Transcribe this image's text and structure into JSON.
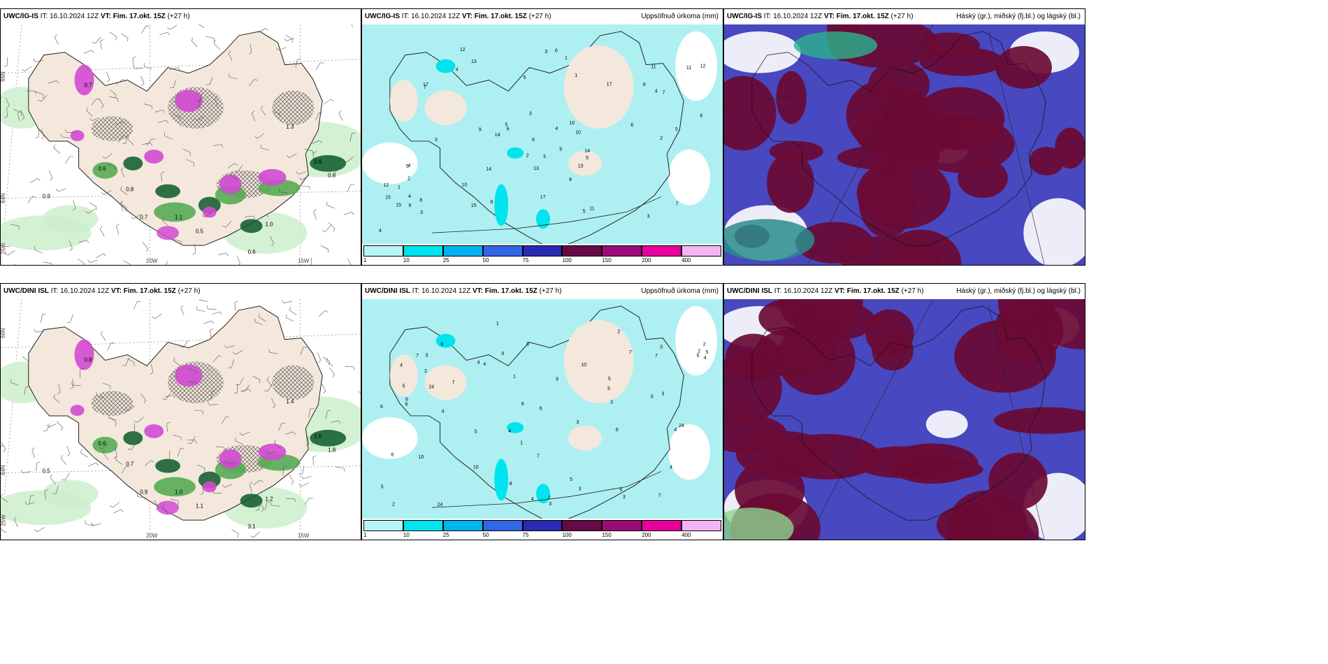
{
  "panels": [
    {
      "model": "UWC/IG-IS",
      "it_label": "IT:",
      "it": "16.10.2024 12Z",
      "vt_label": "VT:",
      "vt": "Fim. 17.okt. 15Z",
      "lead": "(+27 h)",
      "title": ""
    },
    {
      "model": "UWC/IG-IS",
      "it_label": "IT:",
      "it": "16.10.2024 12Z",
      "vt_label": "VT:",
      "vt": "Fim. 17.okt. 15Z",
      "lead": "(+27 h)",
      "title": "Uppsöfnuð úrkoma (mm)"
    },
    {
      "model": "UWC/IG-IS",
      "it_label": "IT:",
      "it": "16.10.2024 12Z",
      "vt_label": "VT:",
      "vt": "Fim. 17.okt. 15Z",
      "lead": "(+27 h)",
      "title": "Háský (gr.), miðský (fj.bl.) og lágský (bl.)"
    },
    {
      "model": "UWC/DINI ISL",
      "it_label": "IT:",
      "it": "16.10.2024 12Z",
      "vt_label": "VT:",
      "vt": "Fim. 17.okt. 15Z",
      "lead": "(+27 h)",
      "title": ""
    },
    {
      "model": "UWC/DINI ISL",
      "it_label": "IT:",
      "it": "16.10.2024 12Z",
      "vt_label": "VT:",
      "vt": "Fim. 17.okt. 15Z",
      "lead": "(+27 h)",
      "title": "Uppsöfnuð úrkoma (mm)"
    },
    {
      "model": "UWC/DINI ISL",
      "it_label": "IT:",
      "it": "16.10.2024 12Z",
      "vt_label": "VT:",
      "vt": "Fim. 17.okt. 15Z",
      "lead": "(+27 h)",
      "title": "Háský (gr.), miðský (fj.bl.) og lágský (bl.)"
    }
  ],
  "axes": {
    "lat_66": "66N",
    "lat_64": "64N",
    "lon_20": "20W",
    "lon_15": "15W",
    "lon_25": "25W"
  },
  "colorbar": {
    "ticks": [
      "1",
      "10",
      "25",
      "50",
      "75",
      "100",
      "150",
      "200",
      "400"
    ],
    "colors": [
      "#b8f6f6",
      "#00e4ee",
      "#00b4ee",
      "#3266e6",
      "#2a2ab4",
      "#640a46",
      "#9c0a78",
      "#e6009c",
      "#f4b4f4"
    ]
  },
  "precip_labels_top": [
    "4",
    "5",
    "6",
    "3",
    "2",
    "7",
    "10",
    "15",
    "14",
    "11",
    "9",
    "13",
    "17",
    "12",
    "8",
    "1",
    "3",
    "4",
    "6",
    "5"
  ],
  "precip_labels_bottom": [
    "3",
    "4",
    "5",
    "2",
    "6",
    "7",
    "10",
    "24",
    "1",
    "3",
    "4",
    "5",
    "8",
    "6",
    "2",
    "3",
    "9",
    "4",
    "5",
    "7"
  ],
  "snow_labels_top": [
    "0.9",
    "0.6",
    "0.8",
    "0.7",
    "1.1",
    "0.5",
    "1.0",
    "1.3",
    "0.9",
    "0.8",
    "0.6",
    "0.7"
  ],
  "snow_labels_bottom": [
    "0.5",
    "0.6",
    "0.7",
    "0.9",
    "1.0",
    "1.1",
    "1.2",
    "1.4",
    "1.5",
    "1.8",
    "3.1",
    "0.8"
  ],
  "colors": {
    "land": "#f4e8dc",
    "sea": "#ffffff",
    "snow_light": "#cdeecd",
    "snow_mid": "#4ca84c",
    "snow_dark": "#0a5a28",
    "magenta": "#d24ad2",
    "cloud_high": "#6a0a34",
    "cloud_mid": "#4848c0",
    "cloud_low": "#ffffff"
  }
}
